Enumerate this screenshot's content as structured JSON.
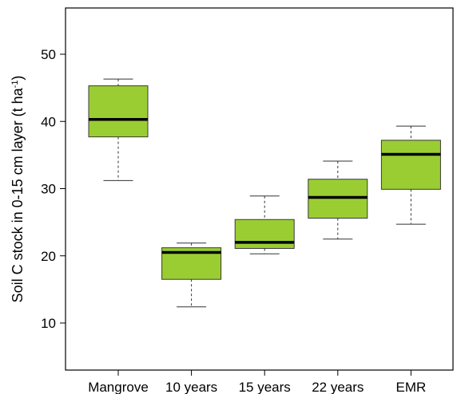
{
  "chart_data": {
    "type": "box",
    "title": "",
    "xlabel": "",
    "ylabel": "Soil C stock in 0-15 cm layer (t ha",
    "ylabel_sup": "-1",
    "ylabel_close": ")",
    "ylim": [
      4,
      55
    ],
    "yticks": [
      10,
      20,
      30,
      40,
      50
    ],
    "categories": [
      "Mangrove",
      "10 years",
      "15 years",
      "22 years",
      "EMR"
    ],
    "boxes": [
      {
        "category": "Mangrove",
        "min": 31.2,
        "q1": 37.7,
        "median": 40.3,
        "q3": 45.3,
        "max": 46.3
      },
      {
        "category": "10 years",
        "min": 12.4,
        "q1": 16.5,
        "median": 20.5,
        "q3": 21.2,
        "max": 21.9
      },
      {
        "category": "15 years",
        "min": 20.3,
        "q1": 21.1,
        "median": 22.0,
        "q3": 25.4,
        "max": 28.9
      },
      {
        "category": "22 years",
        "min": 22.5,
        "q1": 25.6,
        "median": 28.7,
        "q3": 31.4,
        "max": 34.1
      },
      {
        "category": "EMR",
        "min": 24.7,
        "q1": 29.9,
        "median": 35.1,
        "q3": 37.2,
        "max": 39.3
      }
    ],
    "grid": false,
    "legend": "none",
    "colors": {
      "box_fill": "#9acd32",
      "box_stroke": "#3a3a3a",
      "median": "#000000",
      "axis": "#000000"
    }
  }
}
